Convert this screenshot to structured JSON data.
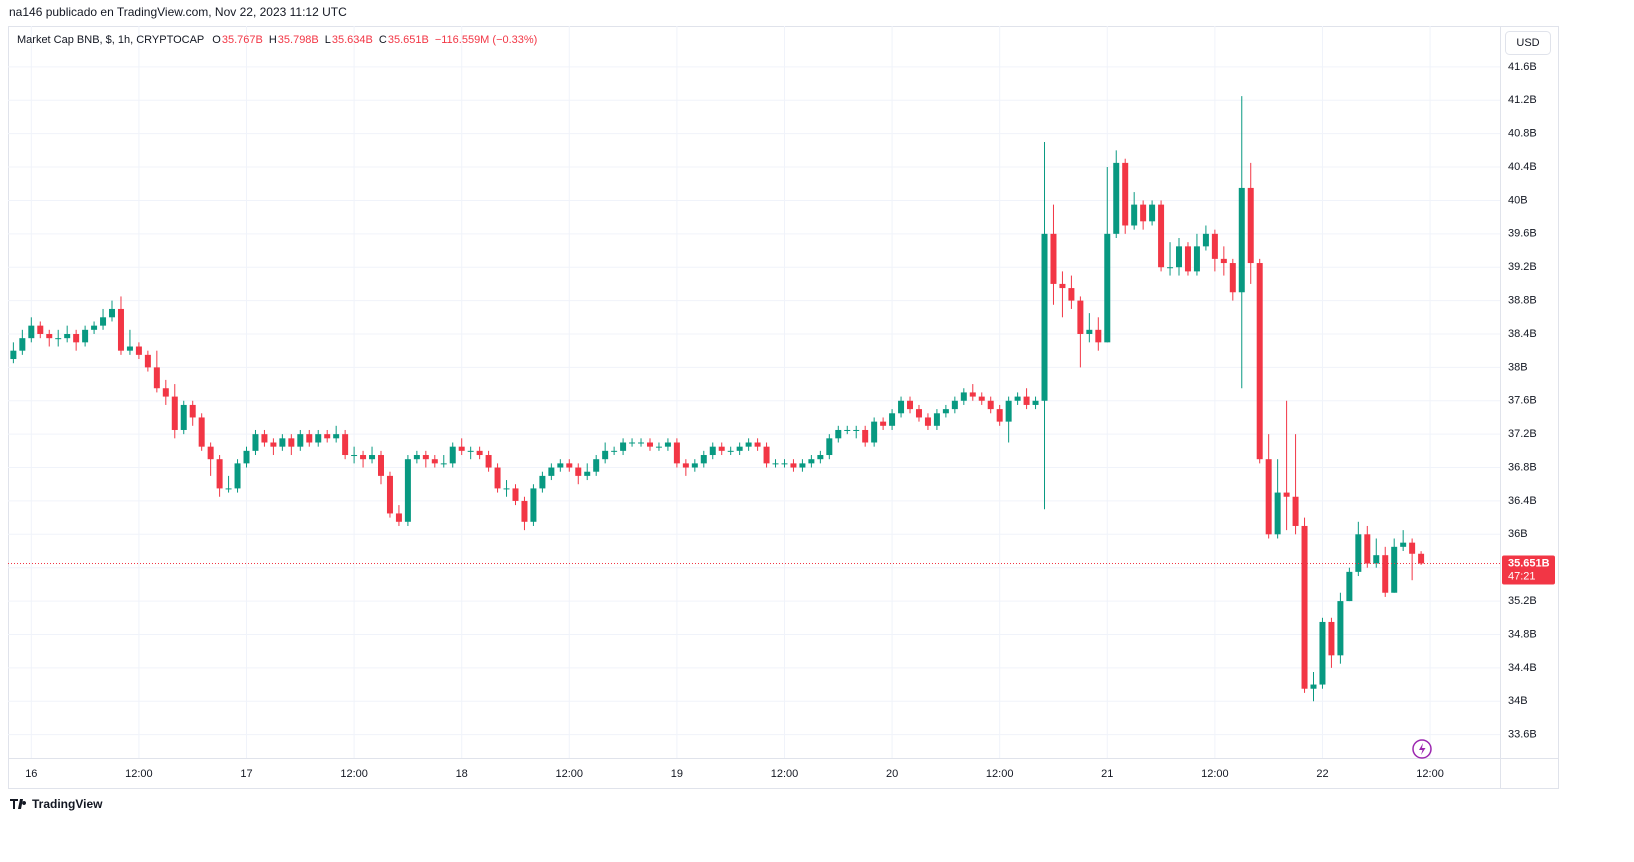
{
  "header": {
    "byline": "na146 publicado en TradingView.com, Nov 22, 2023 11:12 UTC"
  },
  "footer": {
    "brand": "TradingView"
  },
  "chart_data": {
    "type": "candlestick",
    "legend": {
      "symbol": "Market Cap BNB, $, 1h, CRYPTOCAP",
      "fields": [
        {
          "key": "O",
          "value": "35.767B"
        },
        {
          "key": "H",
          "value": "35.798B"
        },
        {
          "key": "L",
          "value": "35.634B"
        },
        {
          "key": "C",
          "value": "35.651B"
        }
      ],
      "change": "−116.559M (−0.33%)"
    },
    "currency": "USD",
    "up_color": "#089981",
    "down_color": "#f23645",
    "grid": true,
    "x": [
      -2,
      -1,
      0,
      1,
      2,
      3,
      4,
      5,
      6,
      7,
      8,
      9,
      10,
      11,
      12,
      13,
      14,
      15,
      16,
      17,
      18,
      19,
      20,
      21,
      22,
      23,
      24,
      25,
      26,
      27,
      28,
      29,
      30,
      31,
      32,
      33,
      34,
      35,
      36,
      37,
      38,
      39,
      40,
      41,
      42,
      43,
      44,
      45,
      46,
      47,
      48,
      49,
      50,
      51,
      52,
      53,
      54,
      55,
      56,
      57,
      58,
      59,
      60,
      61,
      62,
      63,
      64,
      65,
      66,
      67,
      68,
      69,
      70,
      71,
      72,
      73,
      74,
      75,
      76,
      77,
      78,
      79,
      80,
      81,
      82,
      83,
      84,
      85,
      86,
      87,
      88,
      89,
      90,
      91,
      92,
      93,
      94,
      95,
      96,
      97,
      98,
      99,
      100,
      101,
      102,
      103,
      104,
      105,
      106,
      107,
      108,
      109,
      110,
      111,
      112,
      113,
      114,
      115,
      116,
      117,
      118,
      119,
      120,
      121,
      122,
      123,
      124,
      125,
      126,
      127,
      128,
      129,
      130,
      131,
      132,
      133,
      134,
      135,
      136,
      137,
      138,
      139,
      140,
      141,
      142,
      143,
      144,
      145,
      146,
      147,
      148,
      149,
      150,
      151,
      152,
      153,
      154,
      155
    ],
    "open": [
      38.1,
      38.2,
      38.35,
      38.5,
      38.4,
      38.35,
      38.35,
      38.4,
      38.3,
      38.45,
      38.5,
      38.6,
      38.7,
      38.2,
      38.25,
      38.15,
      38.0,
      37.75,
      37.65,
      37.25,
      37.55,
      37.4,
      37.05,
      36.9,
      36.55,
      36.55,
      36.85,
      37.0,
      37.2,
      37.1,
      37.05,
      37.15,
      37.05,
      37.2,
      37.1,
      37.2,
      37.15,
      37.2,
      36.95,
      36.95,
      36.9,
      36.95,
      36.7,
      36.25,
      36.15,
      36.9,
      36.95,
      36.9,
      36.85,
      36.85,
      37.05,
      37.0,
      37.0,
      36.95,
      36.8,
      36.55,
      36.55,
      36.4,
      36.15,
      36.55,
      36.7,
      36.8,
      36.85,
      36.8,
      36.7,
      36.75,
      36.9,
      37.0,
      37.0,
      37.1,
      37.1,
      37.1,
      37.05,
      37.05,
      37.1,
      36.85,
      36.8,
      36.85,
      36.95,
      37.05,
      37.0,
      37.0,
      37.05,
      37.1,
      37.05,
      36.85,
      36.85,
      36.85,
      36.8,
      36.85,
      36.9,
      36.95,
      37.15,
      37.25,
      37.25,
      37.25,
      37.1,
      37.35,
      37.3,
      37.45,
      37.6,
      37.5,
      37.4,
      37.3,
      37.45,
      37.5,
      37.6,
      37.7,
      37.65,
      37.6,
      37.5,
      37.35,
      37.6,
      37.65,
      37.55,
      37.6,
      39.6,
      39.0,
      38.95,
      38.8,
      38.4,
      38.45,
      38.3,
      39.6,
      40.45,
      39.7,
      39.95,
      39.75,
      39.95,
      39.2,
      39.2,
      39.45,
      39.15,
      39.45,
      39.6,
      39.3,
      39.25,
      38.9,
      40.15,
      39.25,
      36.9,
      36.0,
      36.5,
      36.45,
      36.1,
      34.15,
      34.2,
      34.95,
      34.55,
      35.2,
      35.55,
      36.0,
      35.65,
      35.75,
      35.3,
      35.85,
      35.9,
      35.767
    ],
    "high": [
      38.3,
      38.45,
      38.6,
      38.55,
      38.45,
      38.45,
      38.5,
      38.45,
      38.5,
      38.55,
      38.7,
      38.8,
      38.85,
      38.45,
      38.3,
      38.2,
      38.2,
      37.85,
      37.8,
      37.6,
      37.6,
      37.45,
      37.1,
      36.95,
      36.7,
      36.9,
      37.05,
      37.25,
      37.25,
      37.15,
      37.2,
      37.2,
      37.25,
      37.25,
      37.25,
      37.25,
      37.3,
      37.25,
      37.05,
      37.0,
      37.05,
      37.0,
      36.75,
      36.35,
      36.95,
      37.0,
      37.0,
      36.95,
      36.95,
      37.1,
      37.15,
      37.05,
      37.05,
      37.0,
      36.85,
      36.65,
      36.6,
      36.45,
      36.6,
      36.75,
      36.85,
      36.9,
      36.9,
      36.85,
      36.85,
      36.95,
      37.1,
      37.05,
      37.15,
      37.15,
      37.15,
      37.15,
      37.1,
      37.15,
      37.15,
      36.9,
      36.9,
      37.0,
      37.1,
      37.1,
      37.05,
      37.1,
      37.15,
      37.15,
      37.1,
      36.9,
      36.9,
      36.9,
      36.9,
      36.95,
      37.0,
      37.2,
      37.3,
      37.3,
      37.3,
      37.3,
      37.4,
      37.4,
      37.5,
      37.65,
      37.65,
      37.55,
      37.45,
      37.5,
      37.55,
      37.65,
      37.75,
      37.8,
      37.7,
      37.65,
      37.55,
      37.65,
      37.7,
      37.75,
      37.65,
      40.7,
      39.95,
      39.15,
      39.1,
      38.85,
      38.65,
      38.6,
      40.4,
      40.6,
      40.5,
      40.1,
      40.0,
      40.0,
      40.0,
      39.5,
      39.55,
      39.5,
      39.6,
      39.7,
      39.65,
      39.45,
      39.3,
      41.25,
      40.45,
      39.3,
      37.2,
      36.9,
      37.6,
      37.2,
      36.2,
      34.35,
      35.0,
      35.0,
      35.3,
      35.6,
      36.15,
      36.1,
      35.95,
      35.85,
      35.95,
      36.05,
      35.95,
      35.798
    ],
    "low": [
      38.05,
      38.15,
      38.3,
      38.35,
      38.25,
      38.25,
      38.3,
      38.2,
      38.25,
      38.4,
      38.45,
      38.55,
      38.15,
      38.15,
      38.1,
      37.95,
      37.7,
      37.55,
      37.15,
      37.2,
      37.3,
      37.0,
      36.7,
      36.45,
      36.5,
      36.5,
      36.8,
      36.95,
      37.05,
      36.95,
      37.0,
      36.95,
      37.0,
      37.05,
      37.05,
      37.1,
      37.1,
      36.9,
      36.85,
      36.8,
      36.85,
      36.6,
      36.2,
      36.1,
      36.1,
      36.85,
      36.8,
      36.8,
      36.8,
      36.8,
      36.95,
      36.9,
      36.9,
      36.75,
      36.5,
      36.45,
      36.35,
      36.05,
      36.1,
      36.5,
      36.65,
      36.75,
      36.75,
      36.6,
      36.65,
      36.7,
      36.85,
      36.95,
      36.95,
      37.05,
      37.05,
      37.0,
      37.0,
      37.0,
      36.8,
      36.7,
      36.75,
      36.8,
      36.9,
      36.95,
      36.95,
      36.95,
      37.0,
      37.0,
      36.8,
      36.8,
      36.8,
      36.75,
      36.75,
      36.8,
      36.85,
      36.9,
      37.1,
      37.2,
      37.15,
      37.05,
      37.05,
      37.25,
      37.25,
      37.4,
      37.45,
      37.35,
      37.25,
      37.25,
      37.4,
      37.45,
      37.55,
      37.6,
      37.55,
      37.45,
      37.3,
      37.1,
      37.55,
      37.5,
      37.5,
      36.3,
      38.75,
      38.6,
      38.7,
      38.0,
      38.3,
      38.2,
      38.3,
      39.55,
      39.6,
      39.65,
      39.65,
      39.7,
      39.15,
      39.1,
      39.1,
      39.1,
      39.1,
      39.4,
      39.15,
      39.1,
      38.8,
      37.75,
      39.0,
      36.85,
      35.95,
      35.95,
      36.05,
      36.0,
      34.1,
      34.0,
      34.15,
      34.4,
      34.45,
      35.2,
      35.5,
      35.6,
      35.6,
      35.25,
      35.3,
      35.8,
      35.45,
      35.634
    ],
    "close": [
      38.2,
      38.35,
      38.5,
      38.4,
      38.35,
      38.35,
      38.4,
      38.3,
      38.45,
      38.5,
      38.6,
      38.7,
      38.2,
      38.25,
      38.15,
      38.0,
      37.75,
      37.65,
      37.25,
      37.55,
      37.4,
      37.05,
      36.9,
      36.55,
      36.55,
      36.85,
      37.0,
      37.2,
      37.1,
      37.05,
      37.15,
      37.05,
      37.2,
      37.1,
      37.2,
      37.15,
      37.2,
      36.95,
      36.95,
      36.9,
      36.95,
      36.7,
      36.25,
      36.15,
      36.9,
      36.95,
      36.9,
      36.85,
      36.85,
      37.05,
      37.0,
      37.0,
      36.95,
      36.8,
      36.55,
      36.55,
      36.4,
      36.15,
      36.55,
      36.7,
      36.8,
      36.85,
      36.8,
      36.7,
      36.75,
      36.9,
      37.0,
      37.0,
      37.1,
      37.1,
      37.1,
      37.05,
      37.05,
      37.1,
      36.85,
      36.8,
      36.85,
      36.95,
      37.05,
      37.0,
      37.0,
      37.05,
      37.1,
      37.05,
      36.85,
      36.85,
      36.85,
      36.8,
      36.85,
      36.9,
      36.95,
      37.15,
      37.25,
      37.25,
      37.25,
      37.1,
      37.35,
      37.3,
      37.45,
      37.6,
      37.5,
      37.4,
      37.3,
      37.45,
      37.5,
      37.6,
      37.7,
      37.65,
      37.6,
      37.5,
      37.35,
      37.6,
      37.65,
      37.55,
      37.6,
      39.6,
      39.0,
      38.95,
      38.8,
      38.4,
      38.45,
      38.3,
      39.6,
      40.45,
      39.7,
      39.95,
      39.75,
      39.95,
      39.2,
      39.2,
      39.45,
      39.15,
      39.45,
      39.6,
      39.3,
      39.25,
      38.9,
      40.15,
      39.25,
      36.9,
      36.0,
      36.5,
      36.45,
      36.1,
      34.15,
      34.2,
      34.95,
      34.55,
      35.2,
      35.55,
      36.0,
      35.65,
      35.75,
      35.3,
      35.85,
      35.9,
      35.767,
      35.651
    ],
    "last_price": {
      "value": 35.651,
      "label": "35.651B",
      "countdown": "47:21"
    },
    "xlim": [
      -2.6,
      163.8
    ],
    "ylim": [
      33.32,
      42.09
    ],
    "xticks": [
      {
        "value": 0,
        "label": "16"
      },
      {
        "value": 12,
        "label": "12:00"
      },
      {
        "value": 24,
        "label": "17"
      },
      {
        "value": 36,
        "label": "12:00"
      },
      {
        "value": 48,
        "label": "18"
      },
      {
        "value": 60,
        "label": "12:00"
      },
      {
        "value": 72,
        "label": "19"
      },
      {
        "value": 84,
        "label": "12:00"
      },
      {
        "value": 96,
        "label": "20"
      },
      {
        "value": 108,
        "label": "12:00"
      },
      {
        "value": 120,
        "label": "21"
      },
      {
        "value": 132,
        "label": "12:00"
      },
      {
        "value": 144,
        "label": "22"
      },
      {
        "value": 156,
        "label": "12:00"
      }
    ],
    "yticks": [
      {
        "value": 33.6,
        "label": "33.6B"
      },
      {
        "value": 34,
        "label": "34B"
      },
      {
        "value": 34.4,
        "label": "34.4B"
      },
      {
        "value": 34.8,
        "label": "34.8B"
      },
      {
        "value": 35.2,
        "label": "35.2B"
      },
      {
        "value": 35.6,
        "label": "35.6B"
      },
      {
        "value": 36,
        "label": "36B"
      },
      {
        "value": 36.4,
        "label": "36.4B"
      },
      {
        "value": 36.8,
        "label": "36.8B"
      },
      {
        "value": 37.2,
        "label": "37.2B"
      },
      {
        "value": 37.6,
        "label": "37.6B"
      },
      {
        "value": 38,
        "label": "38B"
      },
      {
        "value": 38.4,
        "label": "38.4B"
      },
      {
        "value": 38.8,
        "label": "38.8B"
      },
      {
        "value": 39.2,
        "label": "39.2B"
      },
      {
        "value": 39.6,
        "label": "39.6B"
      },
      {
        "value": 40,
        "label": "40B"
      },
      {
        "value": 40.4,
        "label": "40.4B"
      },
      {
        "value": 40.8,
        "label": "40.8B"
      },
      {
        "value": 41.2,
        "label": "41.2B"
      },
      {
        "value": 41.6,
        "label": "41.6B"
      }
    ]
  }
}
